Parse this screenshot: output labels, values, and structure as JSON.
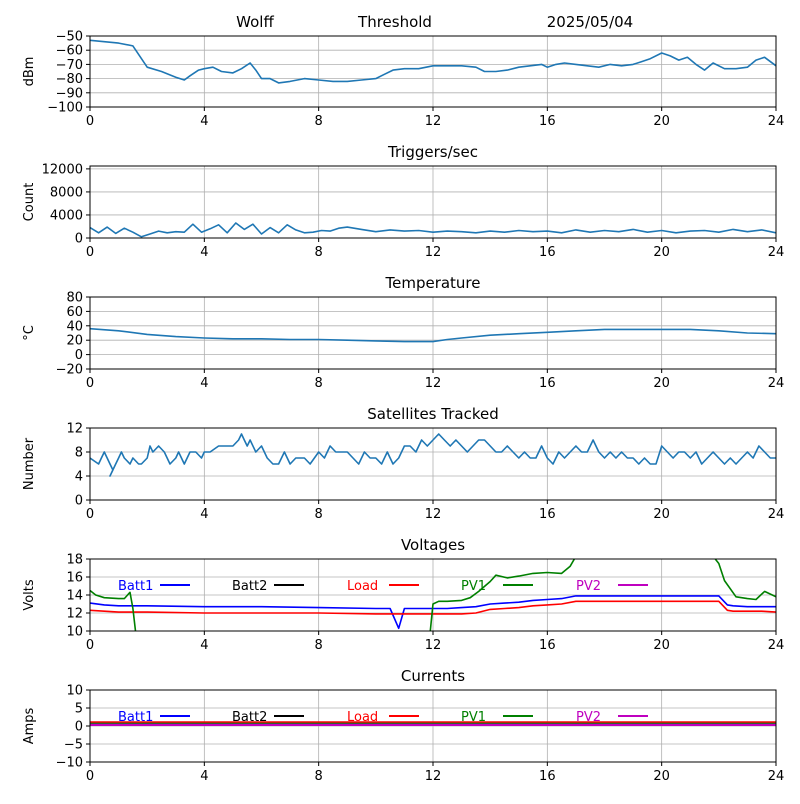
{
  "header": {
    "station": "Wolff",
    "mode": "Threshold",
    "date": "2025/05/04"
  },
  "colors": {
    "series_default": "#1f77b4",
    "grid": "#b0b0b0",
    "batt1": "#0000ff",
    "batt2": "#000000",
    "load": "#ff0000",
    "pv1": "#008000",
    "pv2": "#bf00bf"
  },
  "chart_data": [
    {
      "type": "line",
      "title": "",
      "ylabel": "dBm",
      "xlim": [
        0,
        24
      ],
      "ylim": [
        -100,
        -50
      ],
      "xticks": [
        0,
        4,
        8,
        12,
        16,
        20,
        24
      ],
      "yticks": [
        -100,
        -90,
        -80,
        -70,
        -60,
        -50
      ],
      "grid": true,
      "series": [
        {
          "color": "#1f77b4",
          "x": [
            0,
            0.5,
            1,
            1.5,
            2,
            2.5,
            3,
            3.3,
            3.5,
            3.8,
            4,
            4.3,
            4.6,
            5,
            5.3,
            5.6,
            5.8,
            6,
            6.3,
            6.6,
            7,
            7.5,
            8,
            8.5,
            9,
            9.5,
            10,
            10.3,
            10.6,
            11,
            11.5,
            12,
            12.5,
            13,
            13.5,
            13.8,
            14.2,
            14.6,
            15,
            15.4,
            15.8,
            16,
            16.3,
            16.6,
            17,
            17.4,
            17.8,
            18.2,
            18.6,
            19,
            19.3,
            19.6,
            20,
            20.3,
            20.6,
            20.9,
            21.2,
            21.5,
            21.8,
            22.2,
            22.6,
            23,
            23.3,
            23.6,
            24
          ],
          "y": [
            -53,
            -54,
            -55,
            -57,
            -72,
            -75,
            -79,
            -81,
            -78,
            -74,
            -73,
            -72,
            -75,
            -76,
            -73,
            -69,
            -74,
            -80,
            -80,
            -83,
            -82,
            -80,
            -81,
            -82,
            -82,
            -81,
            -80,
            -77,
            -74,
            -73,
            -73,
            -71,
            -71,
            -71,
            -72,
            -75,
            -75,
            -74,
            -72,
            -71,
            -70,
            -72,
            -70,
            -69,
            -70,
            -71,
            -72,
            -70,
            -71,
            -70,
            -68,
            -66,
            -62,
            -64,
            -67,
            -65,
            -70,
            -74,
            -69,
            -73,
            -73,
            -72,
            -67,
            -65,
            -71
          ]
        }
      ]
    },
    {
      "type": "line",
      "title": "Triggers/sec",
      "ylabel": "Count",
      "xlim": [
        0,
        24
      ],
      "ylim": [
        0,
        12500
      ],
      "xticks": [
        0,
        4,
        8,
        12,
        16,
        20,
        24
      ],
      "yticks": [
        0,
        4000,
        8000,
        12000
      ],
      "grid": true,
      "series": [
        {
          "color": "#1f77b4",
          "x": [
            0,
            0.3,
            0.6,
            0.9,
            1.2,
            1.5,
            1.8,
            2.1,
            2.4,
            2.7,
            3,
            3.3,
            3.6,
            3.9,
            4.2,
            4.5,
            4.8,
            5.1,
            5.4,
            5.7,
            6,
            6.3,
            6.6,
            6.9,
            7.2,
            7.5,
            7.8,
            8.1,
            8.4,
            8.7,
            9,
            9.5,
            10,
            10.5,
            11,
            11.5,
            12,
            12.5,
            13,
            13.5,
            14,
            14.5,
            15,
            15.5,
            16,
            16.5,
            17,
            17.5,
            18,
            18.5,
            19,
            19.5,
            20,
            20.5,
            21,
            21.5,
            22,
            22.5,
            23,
            23.5,
            24
          ],
          "y": [
            1800,
            900,
            1900,
            800,
            1700,
            1000,
            200,
            700,
            1200,
            900,
            1100,
            1000,
            2400,
            1000,
            1600,
            2300,
            900,
            2600,
            1500,
            2400,
            700,
            1800,
            900,
            2300,
            1400,
            900,
            1000,
            1300,
            1200,
            1700,
            1900,
            1500,
            1100,
            1400,
            1200,
            1300,
            1000,
            1200,
            1100,
            900,
            1200,
            1000,
            1300,
            1100,
            1200,
            900,
            1400,
            1000,
            1300,
            1100,
            1500,
            1000,
            1300,
            900,
            1200,
            1300,
            1000,
            1500,
            1100,
            1400,
            900
          ]
        }
      ]
    },
    {
      "type": "line",
      "title": "Temperature",
      "ylabel": "°C",
      "xlim": [
        0,
        24
      ],
      "ylim": [
        -20,
        80
      ],
      "xticks": [
        0,
        4,
        8,
        12,
        16,
        20,
        24
      ],
      "yticks": [
        -20,
        0,
        20,
        40,
        60,
        80
      ],
      "grid": true,
      "series": [
        {
          "color": "#1f77b4",
          "x": [
            0,
            1,
            2,
            3,
            4,
            5,
            6,
            7,
            8,
            9,
            10,
            11,
            12,
            12.5,
            13,
            14,
            15,
            16,
            17,
            18,
            19,
            20,
            21,
            22,
            23,
            24
          ],
          "y": [
            36,
            33,
            28,
            25,
            23,
            22,
            22,
            21,
            21,
            20,
            19,
            18,
            18,
            21,
            23,
            27,
            29,
            31,
            33,
            35,
            35,
            35,
            35,
            33,
            30,
            29
          ]
        }
      ]
    },
    {
      "type": "line",
      "title": "Satellites Tracked",
      "ylabel": "Number",
      "xlim": [
        0,
        24
      ],
      "ylim": [
        0,
        12
      ],
      "xticks": [
        0,
        4,
        8,
        12,
        16,
        20,
        24
      ],
      "yticks": [
        0,
        4,
        8,
        12
      ],
      "grid": true,
      "series": [
        {
          "color": "#1f77b4",
          "x": [
            0,
            0.3,
            0.4,
            0.5,
            0.7,
            0.8,
            0.7,
            0.9,
            1,
            1.1,
            1.2,
            1.4,
            1.5,
            1.7,
            1.8,
            2,
            2.1,
            2.2,
            2.4,
            2.6,
            2.8,
            3,
            3.1,
            3.3,
            3.5,
            3.7,
            3.9,
            4,
            4.2,
            4.5,
            4.7,
            5,
            5.2,
            5.3,
            5.4,
            5.5,
            5.6,
            5.8,
            6,
            6.2,
            6.4,
            6.6,
            6.8,
            7,
            7.2,
            7.5,
            7.7,
            8,
            8.2,
            8.4,
            8.6,
            9,
            9.2,
            9.4,
            9.6,
            9.8,
            10,
            10.2,
            10.4,
            10.6,
            10.8,
            11,
            11.2,
            11.4,
            11.6,
            11.8,
            12,
            12.2,
            12.4,
            12.6,
            12.8,
            13,
            13.2,
            13.4,
            13.6,
            13.8,
            14,
            14.2,
            14.4,
            14.6,
            14.8,
            15,
            15.2,
            15.4,
            15.6,
            15.8,
            16,
            16.2,
            16.4,
            16.6,
            16.8,
            17,
            17.2,
            17.4,
            17.6,
            17.8,
            18,
            18.2,
            18.4,
            18.6,
            18.8,
            19,
            19.2,
            19.4,
            19.6,
            19.8,
            20,
            20.2,
            20.4,
            20.6,
            20.8,
            21,
            21.2,
            21.4,
            21.6,
            21.8,
            22,
            22.2,
            22.4,
            22.6,
            22.8,
            23,
            23.2,
            23.4,
            23.6,
            23.8,
            24
          ],
          "y": [
            7,
            6,
            7,
            8,
            6,
            5,
            4,
            6,
            7,
            8,
            7,
            6,
            7,
            6,
            6,
            7,
            9,
            8,
            9,
            8,
            6,
            7,
            8,
            6,
            8,
            8,
            7,
            8,
            8,
            9,
            9,
            9,
            10,
            11,
            10,
            9,
            10,
            8,
            9,
            7,
            6,
            6,
            8,
            6,
            7,
            7,
            6,
            8,
            7,
            9,
            8,
            8,
            7,
            6,
            8,
            7,
            7,
            6,
            8,
            6,
            7,
            9,
            9,
            8,
            10,
            9,
            10,
            11,
            10,
            9,
            10,
            9,
            8,
            9,
            10,
            10,
            9,
            8,
            8,
            9,
            8,
            7,
            8,
            7,
            7,
            9,
            7,
            6,
            8,
            7,
            8,
            9,
            8,
            8,
            10,
            8,
            7,
            8,
            7,
            8,
            7,
            7,
            6,
            7,
            6,
            6,
            9,
            8,
            7,
            8,
            8,
            7,
            8,
            6,
            7,
            8,
            7,
            6,
            7,
            6,
            7,
            8,
            7,
            9,
            8,
            7,
            7
          ]
        }
      ]
    },
    {
      "type": "line",
      "title": "Voltages",
      "ylabel": "Volts",
      "xlim": [
        0,
        24
      ],
      "ylim": [
        10,
        18
      ],
      "xticks": [
        0,
        4,
        8,
        12,
        16,
        20,
        24
      ],
      "yticks": [
        10,
        12,
        14,
        16,
        18
      ],
      "grid": true,
      "legend": "inside-top, single row",
      "series": [
        {
          "name": "Batt1",
          "color": "#0000ff",
          "x": [
            0,
            0.5,
            1,
            2,
            4,
            6,
            8,
            10,
            10.5,
            10.8,
            11,
            12,
            12.5,
            13,
            13.5,
            14,
            14.5,
            15,
            15.5,
            16,
            16.5,
            17,
            18,
            19,
            20,
            21,
            21.5,
            22,
            22.3,
            22.5,
            23,
            23.5,
            24
          ],
          "y": [
            13.1,
            12.9,
            12.8,
            12.8,
            12.7,
            12.7,
            12.6,
            12.5,
            12.5,
            10.3,
            12.5,
            12.5,
            12.5,
            12.6,
            12.7,
            13.0,
            13.1,
            13.2,
            13.4,
            13.5,
            13.6,
            13.9,
            13.9,
            13.9,
            13.9,
            13.9,
            13.9,
            13.9,
            12.9,
            12.8,
            12.7,
            12.7,
            12.7
          ]
        },
        {
          "name": "Batt2",
          "color": "#000000",
          "x": [],
          "y": []
        },
        {
          "name": "Load",
          "color": "#ff0000",
          "x": [
            0,
            0.5,
            1,
            2,
            4,
            6,
            8,
            10,
            11,
            12,
            13,
            13.5,
            14,
            14.5,
            15,
            15.5,
            16,
            16.5,
            17,
            18,
            19,
            20,
            21,
            21.5,
            22,
            22.3,
            22.5,
            23,
            23.5,
            24
          ],
          "y": [
            12.3,
            12.2,
            12.1,
            12.1,
            12.0,
            12.0,
            12.0,
            11.9,
            11.9,
            11.9,
            11.9,
            12.0,
            12.4,
            12.5,
            12.6,
            12.8,
            12.9,
            13.0,
            13.3,
            13.3,
            13.3,
            13.3,
            13.3,
            13.3,
            13.3,
            12.3,
            12.2,
            12.2,
            12.2,
            12.1
          ]
        },
        {
          "name": "PV1",
          "color": "#008000",
          "x": [
            0,
            0.2,
            0.5,
            1,
            1.2,
            1.4,
            1.5,
            1.6,
            11.9,
            12,
            12.2,
            12.5,
            13,
            13.3,
            13.6,
            14,
            14.2,
            14.6,
            15,
            15.5,
            16,
            16.5,
            16.8,
            17,
            17.4,
            21.8,
            22,
            22.2,
            22.6,
            23,
            23.3,
            23.6,
            24
          ],
          "y": [
            14.5,
            14.0,
            13.7,
            13.6,
            13.6,
            14.3,
            12.5,
            9.8,
            9.8,
            13.0,
            13.3,
            13.3,
            13.4,
            13.7,
            14.4,
            15.5,
            16.2,
            15.9,
            16.1,
            16.4,
            16.5,
            16.4,
            17.2,
            18.3,
            18.3,
            18.3,
            17.5,
            15.6,
            13.8,
            13.6,
            13.5,
            14.4,
            13.8
          ]
        },
        {
          "name": "PV2",
          "color": "#bf00bf",
          "x": [],
          "y": []
        }
      ]
    },
    {
      "type": "line",
      "title": "Currents",
      "ylabel": "Amps",
      "xlim": [
        0,
        24
      ],
      "ylim": [
        -10,
        10
      ],
      "xticks": [
        0,
        4,
        8,
        12,
        16,
        20,
        24
      ],
      "yticks": [
        -10,
        -5,
        0,
        5,
        10
      ],
      "grid": true,
      "legend": "inside-top, single row",
      "series": [
        {
          "name": "Batt1",
          "color": "#0000ff",
          "x": [
            0,
            6,
            12,
            18,
            24
          ],
          "y": [
            0.4,
            0.4,
            0.4,
            0.4,
            0.4
          ]
        },
        {
          "name": "Batt2",
          "color": "#000000",
          "x": [
            0,
            6,
            12,
            18,
            24
          ],
          "y": [
            0.8,
            0.8,
            0.8,
            0.8,
            0.8
          ]
        },
        {
          "name": "Load",
          "color": "#ff0000",
          "x": [
            0,
            6,
            12,
            18,
            24
          ],
          "y": [
            1.0,
            1.0,
            1.0,
            1.0,
            1.0
          ]
        },
        {
          "name": "PV1",
          "color": "#008000",
          "x": [
            0,
            6,
            12,
            18,
            24
          ],
          "y": [
            0.6,
            0.6,
            0.6,
            0.6,
            0.6
          ]
        },
        {
          "name": "PV2",
          "color": "#bf00bf",
          "x": [
            0,
            6,
            12,
            18,
            24
          ],
          "y": [
            0.3,
            0.3,
            0.3,
            0.3,
            0.3
          ]
        }
      ]
    }
  ]
}
